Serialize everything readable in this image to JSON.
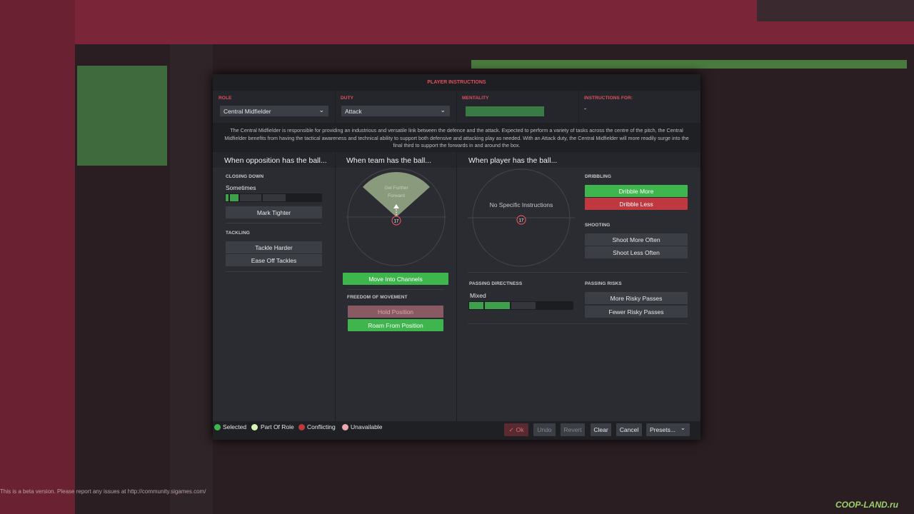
{
  "background": {
    "beta_notice": "This is a beta version. Please report any issues at http://community.sigames.com/",
    "watermark": "COOP-LAND.ru"
  },
  "modal": {
    "title": "PLAYER INSTRUCTIONS",
    "fields": [
      {
        "label": "ROLE",
        "value": "Central Midfielder"
      },
      {
        "label": "DUTY",
        "value": "Attack"
      },
      {
        "label": "MENTALITY"
      },
      {
        "label": "INSTRUCTIONS FOR:",
        "value": "-"
      }
    ],
    "description": "The Central Midfielder is responsible for providing an industrious and versatile link between the defence and the attack. Expected to perform a variety of tasks across the centre of the pitch, the Central Midfielder benefits from having the tactical awareness and technical ability to support both defensive and attacking play as needed. With an Attack duty, the Central Midfielder will more readily surge into the final third to support the forwards in and around the box.",
    "player_number": "17",
    "opposition": {
      "heading": "When opposition has the ball...",
      "closing_down": {
        "label": "CLOSING DOWN",
        "value": "Sometimes",
        "button": "Mark Tighter"
      },
      "tackling": {
        "label": "TACKLING",
        "buttons": [
          "Tackle Harder",
          "Ease Off Tackles"
        ]
      }
    },
    "team": {
      "heading": "When team has the ball...",
      "zone": "Get Further Forward",
      "button": "Move Into Channels",
      "freedom": {
        "label": "FREEDOM OF MOVEMENT",
        "buttons": [
          "Hold Position",
          "Roam From Position"
        ]
      }
    },
    "player": {
      "heading": "When player has the ball...",
      "zone": "No Specific Instructions",
      "dribbling": {
        "label": "DRIBBLING",
        "buttons": [
          "Dribble More",
          "Dribble Less"
        ]
      },
      "shooting": {
        "label": "SHOOTING",
        "buttons": [
          "Shoot More Often",
          "Shoot Less Often"
        ]
      },
      "passing_directness": {
        "label": "PASSING DIRECTNESS",
        "value": "Mixed"
      },
      "passing_risks": {
        "label": "PASSING RISKS",
        "buttons": [
          "More Risky Passes",
          "Fewer Risky Passes"
        ]
      }
    },
    "legend": [
      "Selected",
      "Part Of Role",
      "Conflicting",
      "Unavailable"
    ],
    "buttons": [
      "Ok",
      "Undo",
      "Revert",
      "Clear",
      "Cancel",
      "Presets..."
    ]
  }
}
